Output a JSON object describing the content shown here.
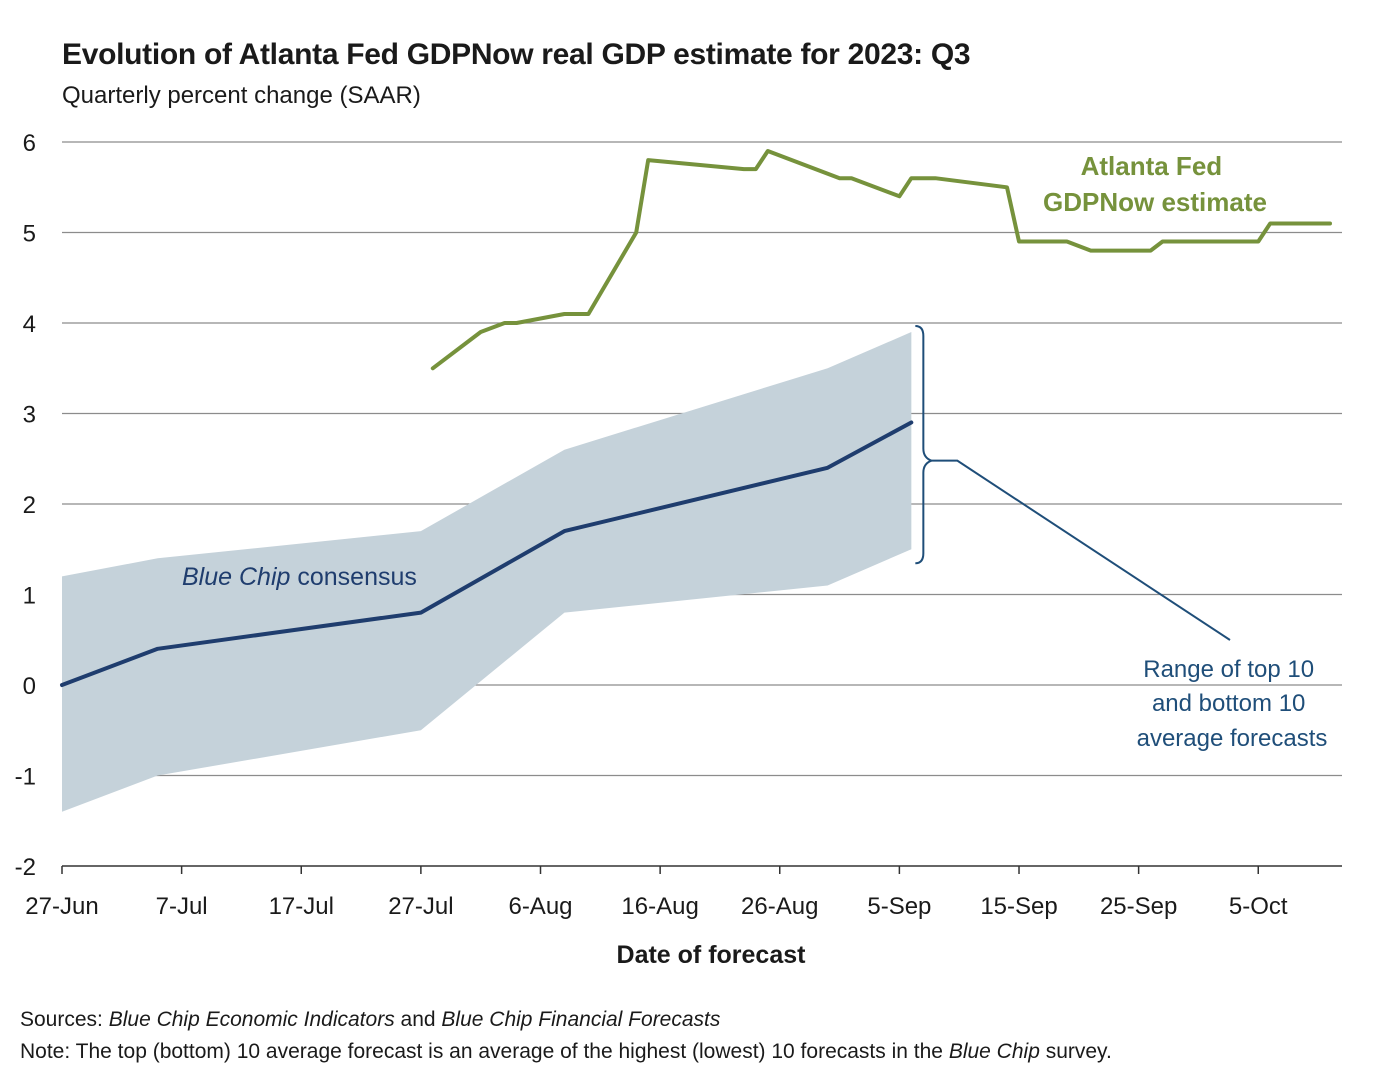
{
  "header": {
    "title": "Evolution of Atlanta Fed GDPNow real GDP estimate for 2023: Q3",
    "subtitle": "Quarterly percent change (SAAR)"
  },
  "footer": {
    "sources_label": "Sources:",
    "sources_text_1": "Blue Chip Economic Indicators",
    "sources_and": " and ",
    "sources_text_2": "Blue Chip Financial Forecasts",
    "note_label": "Note:",
    "note_text_1": " The top (bottom) 10 average forecast is an average of the highest (lowest) 10 forecasts in the ",
    "note_italic": "Blue Chip",
    "note_text_2": " survey."
  },
  "annotations": {
    "gdpnow_line1": "Atlanta Fed",
    "gdpnow_line2": "GDPNow estimate",
    "bluechip_italic": "Blue Chip",
    "bluechip_rest": " consensus",
    "range_line1": "Range of top 10",
    "range_line2": "and bottom 10",
    "range_line3": "average forecasts"
  },
  "colors": {
    "gdpnow": "#76923c",
    "consensus": "#1f3d6e",
    "band": "#c5d2da",
    "callout": "#1f4e79",
    "grid": "#8c8c8c"
  },
  "chart_data": {
    "type": "line",
    "xlabel": "Date of forecast",
    "ylabel": "",
    "ylim": [
      -2,
      6
    ],
    "yticks": [
      -2,
      -1,
      0,
      1,
      2,
      3,
      4,
      5,
      6
    ],
    "xlim": [
      "2023-06-27",
      "2023-10-12"
    ],
    "xticks": [
      "27-Jun",
      "7-Jul",
      "17-Jul",
      "27-Jul",
      "6-Aug",
      "16-Aug",
      "26-Aug",
      "5-Sep",
      "15-Sep",
      "25-Sep",
      "5-Oct"
    ],
    "grid": "horizontal",
    "series": [
      {
        "name": "Atlanta Fed GDPNow estimate",
        "style": "line",
        "points": [
          [
            "2023-07-28",
            3.5
          ],
          [
            "2023-08-01",
            3.9
          ],
          [
            "2023-08-03",
            4.0
          ],
          [
            "2023-08-04",
            4.0
          ],
          [
            "2023-08-08",
            4.1
          ],
          [
            "2023-08-10",
            4.1
          ],
          [
            "2023-08-14",
            5.0
          ],
          [
            "2023-08-15",
            5.8
          ],
          [
            "2023-08-23",
            5.7
          ],
          [
            "2023-08-24",
            5.7
          ],
          [
            "2023-08-25",
            5.9
          ],
          [
            "2023-08-31",
            5.6
          ],
          [
            "2023-09-01",
            5.6
          ],
          [
            "2023-09-05",
            5.4
          ],
          [
            "2023-09-06",
            5.6
          ],
          [
            "2023-09-08",
            5.6
          ],
          [
            "2023-09-14",
            5.5
          ],
          [
            "2023-09-15",
            4.9
          ],
          [
            "2023-09-19",
            4.9
          ],
          [
            "2023-09-21",
            4.8
          ],
          [
            "2023-09-26",
            4.8
          ],
          [
            "2023-09-27",
            4.9
          ],
          [
            "2023-10-05",
            4.9
          ],
          [
            "2023-10-06",
            5.1
          ],
          [
            "2023-10-11",
            5.1
          ]
        ]
      },
      {
        "name": "Blue Chip consensus",
        "style": "line",
        "points": [
          [
            "2023-06-27",
            0.0
          ],
          [
            "2023-07-05",
            0.4
          ],
          [
            "2023-07-27",
            0.8
          ],
          [
            "2023-08-08",
            1.7
          ],
          [
            "2023-08-30",
            2.4
          ],
          [
            "2023-09-06",
            2.9
          ]
        ]
      },
      {
        "name": "Range of top 10 and bottom 10 average forecasts",
        "style": "band",
        "upper": [
          [
            "2023-06-27",
            1.2
          ],
          [
            "2023-07-05",
            1.4
          ],
          [
            "2023-07-27",
            1.7
          ],
          [
            "2023-08-08",
            2.6
          ],
          [
            "2023-08-30",
            3.5
          ],
          [
            "2023-09-06",
            3.9
          ]
        ],
        "lower": [
          [
            "2023-06-27",
            -1.4
          ],
          [
            "2023-07-05",
            -1.0
          ],
          [
            "2023-07-27",
            -0.5
          ],
          [
            "2023-08-08",
            0.8
          ],
          [
            "2023-08-30",
            1.1
          ],
          [
            "2023-09-06",
            1.5
          ]
        ]
      }
    ]
  }
}
